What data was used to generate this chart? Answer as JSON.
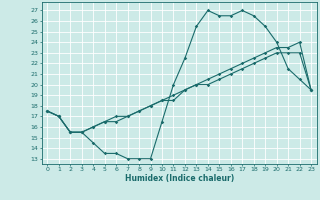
{
  "title": "",
  "xlabel": "Humidex (Indice chaleur)",
  "ylabel": "",
  "bg_color": "#cceae7",
  "grid_color": "#ffffff",
  "line_color": "#1a6b6b",
  "xlim": [
    -0.5,
    23.5
  ],
  "ylim": [
    12.5,
    27.8
  ],
  "xticks": [
    0,
    1,
    2,
    3,
    4,
    5,
    6,
    7,
    8,
    9,
    10,
    11,
    12,
    13,
    14,
    15,
    16,
    17,
    18,
    19,
    20,
    21,
    22,
    23
  ],
  "yticks": [
    13,
    14,
    15,
    16,
    17,
    18,
    19,
    20,
    21,
    22,
    23,
    24,
    25,
    26,
    27
  ],
  "line1_x": [
    0,
    1,
    2,
    3,
    4,
    5,
    6,
    7,
    8,
    9,
    10,
    11,
    12,
    13,
    14,
    15,
    16,
    17,
    18,
    19,
    20,
    21,
    22,
    23
  ],
  "line1_y": [
    17.5,
    17.0,
    15.5,
    15.5,
    14.5,
    13.5,
    13.5,
    13.0,
    13.0,
    13.0,
    16.5,
    20.0,
    22.5,
    25.5,
    27.0,
    26.5,
    26.5,
    27.0,
    26.5,
    25.5,
    24.0,
    21.5,
    20.5,
    19.5
  ],
  "line2_x": [
    0,
    1,
    2,
    3,
    4,
    5,
    6,
    7,
    8,
    9,
    10,
    11,
    12,
    13,
    14,
    15,
    16,
    17,
    18,
    19,
    20,
    21,
    22,
    23
  ],
  "line2_y": [
    17.5,
    17.0,
    15.5,
    15.5,
    16.0,
    16.5,
    17.0,
    17.0,
    17.5,
    18.0,
    18.5,
    19.0,
    19.5,
    20.0,
    20.5,
    21.0,
    21.5,
    22.0,
    22.5,
    23.0,
    23.5,
    23.5,
    24.0,
    19.5
  ],
  "line3_x": [
    0,
    1,
    2,
    3,
    4,
    5,
    6,
    7,
    8,
    9,
    10,
    11,
    12,
    13,
    14,
    15,
    16,
    17,
    18,
    19,
    20,
    21,
    22,
    23
  ],
  "line3_y": [
    17.5,
    17.0,
    15.5,
    15.5,
    16.0,
    16.5,
    16.5,
    17.0,
    17.5,
    18.0,
    18.5,
    18.5,
    19.5,
    20.0,
    20.0,
    20.5,
    21.0,
    21.5,
    22.0,
    22.5,
    23.0,
    23.0,
    23.0,
    19.5
  ]
}
